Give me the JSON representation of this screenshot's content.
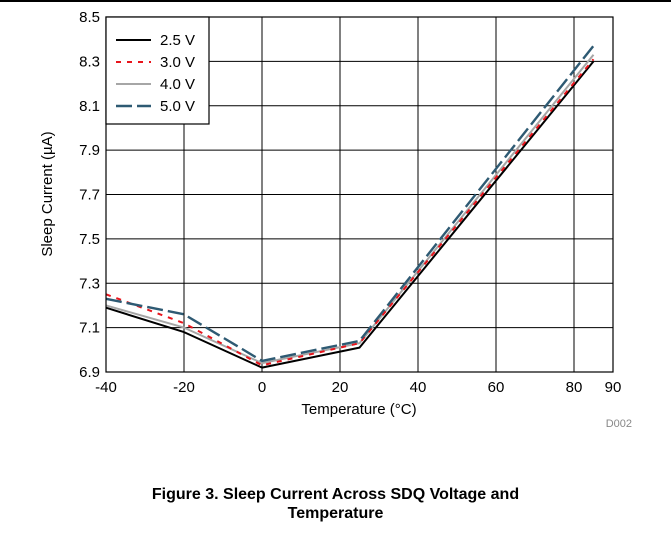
{
  "chart_data": {
    "type": "line",
    "xlabel": "Temperature (°C)",
    "ylabel": "Sleep Current (µA)",
    "xlim": [
      -40,
      90
    ],
    "ylim": [
      6.9,
      8.5
    ],
    "xticks": [
      -40,
      -20,
      0,
      20,
      40,
      60,
      80,
      90
    ],
    "xtick_labels": [
      "-40",
      "-20",
      "0",
      "20",
      "40",
      "60",
      "80",
      "90"
    ],
    "yticks": [
      6.9,
      7.1,
      7.3,
      7.5,
      7.7,
      7.9,
      8.1,
      8.3,
      8.5
    ],
    "ytick_labels": [
      "6.9",
      "7.1",
      "7.3",
      "7.5",
      "7.7",
      "7.9",
      "8.1",
      "8.3",
      "8.5"
    ],
    "grid": true,
    "legend_position": "top-left",
    "series": [
      {
        "name": "2.5 V",
        "color": "#000000",
        "style": "solid",
        "x": [
          -40,
          -20,
          0,
          25,
          85
        ],
        "y": [
          7.19,
          7.08,
          6.92,
          7.01,
          8.3
        ]
      },
      {
        "name": "3.0 V",
        "color": "#e8141c",
        "style": "dotted",
        "x": [
          -40,
          -20,
          0,
          25,
          85
        ],
        "y": [
          7.25,
          7.12,
          6.93,
          7.03,
          8.31
        ]
      },
      {
        "name": "4.0 V",
        "color": "#a6a6a6",
        "style": "solid",
        "x": [
          -40,
          -20,
          0,
          25,
          85
        ],
        "y": [
          7.2,
          7.1,
          6.94,
          7.03,
          8.33
        ]
      },
      {
        "name": "5.0 V",
        "color": "#2e5a73",
        "style": "dashed",
        "x": [
          -40,
          -20,
          0,
          25,
          85
        ],
        "y": [
          7.23,
          7.16,
          6.95,
          7.04,
          8.37
        ]
      }
    ]
  },
  "figure_code": "D002",
  "caption_line1": "Figure 3. Sleep Current Across SDQ Voltage and",
  "caption_line2": "Temperature"
}
